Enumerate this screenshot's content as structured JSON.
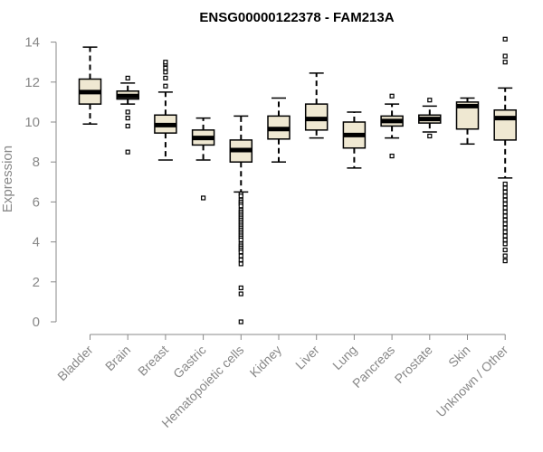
{
  "chart_data": {
    "type": "boxplot",
    "title": "ENSG00000122378 - FAM213A",
    "xlabel": "",
    "ylabel": "Expression",
    "ylim": [
      0,
      14.2
    ],
    "yticks": [
      0,
      2,
      4,
      6,
      8,
      10,
      12,
      14
    ],
    "box_fill": "#efe8d2",
    "line_color": "#000000",
    "categories": [
      "Bladder",
      "Brain",
      "Breast",
      "Gastric",
      "Hematopoietic cells",
      "Kidney",
      "Liver",
      "Lung",
      "Pancreas",
      "Prostate",
      "Skin",
      "Unknown / Other"
    ],
    "boxes": [
      {
        "name": "Bladder",
        "whisker_low": 9.9,
        "q1": 10.9,
        "median": 11.5,
        "q3": 12.15,
        "whisker_high": 13.75,
        "outliers": []
      },
      {
        "name": "Brain",
        "whisker_low": 10.9,
        "q1": 11.15,
        "median": 11.3,
        "q3": 11.55,
        "whisker_high": 11.95,
        "outliers": [
          12.2,
          10.5,
          10.2,
          9.8,
          8.5
        ]
      },
      {
        "name": "Breast",
        "whisker_low": 8.1,
        "q1": 9.45,
        "median": 9.85,
        "q3": 10.35,
        "whisker_high": 11.5,
        "outliers": [
          11.8,
          12.2,
          12.5,
          12.7,
          12.9,
          13.0
        ]
      },
      {
        "name": "Gastric",
        "whisker_low": 8.1,
        "q1": 8.85,
        "median": 9.2,
        "q3": 9.6,
        "whisker_high": 10.2,
        "outliers": [
          6.2
        ]
      },
      {
        "name": "Hematopoietic cells",
        "whisker_low": 6.5,
        "q1": 8.0,
        "median": 8.6,
        "q3": 9.1,
        "whisker_high": 10.3,
        "outliers": [
          6.4,
          6.3,
          6.1,
          6.0,
          5.9,
          5.8,
          5.6,
          5.5,
          5.4,
          5.3,
          5.2,
          5.1,
          5.0,
          4.9,
          4.8,
          4.7,
          4.6,
          4.5,
          4.4,
          4.3,
          4.2,
          4.1,
          3.9,
          3.8,
          3.7,
          3.6,
          3.5,
          3.3,
          3.1,
          2.9,
          1.7,
          1.4,
          0.0
        ]
      },
      {
        "name": "Kidney",
        "whisker_low": 8.0,
        "q1": 9.15,
        "median": 9.65,
        "q3": 10.3,
        "whisker_high": 11.2,
        "outliers": []
      },
      {
        "name": "Liver",
        "whisker_low": 9.2,
        "q1": 9.6,
        "median": 10.15,
        "q3": 10.9,
        "whisker_high": 12.45,
        "outliers": []
      },
      {
        "name": "Lung",
        "whisker_low": 7.7,
        "q1": 8.7,
        "median": 9.35,
        "q3": 10.0,
        "whisker_high": 10.5,
        "outliers": []
      },
      {
        "name": "Pancreas",
        "whisker_low": 9.2,
        "q1": 9.8,
        "median": 10.05,
        "q3": 10.3,
        "whisker_high": 10.9,
        "outliers": [
          11.3,
          8.3
        ]
      },
      {
        "name": "Prostate",
        "whisker_low": 9.5,
        "q1": 9.95,
        "median": 10.15,
        "q3": 10.35,
        "whisker_high": 10.8,
        "outliers": [
          11.1,
          9.3
        ]
      },
      {
        "name": "Skin",
        "whisker_low": 8.9,
        "q1": 9.65,
        "median": 10.8,
        "q3": 11.0,
        "whisker_high": 11.2,
        "outliers": []
      },
      {
        "name": "Unknown / Other",
        "whisker_low": 7.2,
        "q1": 9.1,
        "median": 10.2,
        "q3": 10.6,
        "whisker_high": 11.7,
        "outliers": [
          14.15,
          13.3,
          13.0,
          6.9,
          6.7,
          6.5,
          6.3,
          6.1,
          5.9,
          5.7,
          5.5,
          5.3,
          5.1,
          4.9,
          4.7,
          4.5,
          4.3,
          4.1,
          3.9,
          3.6,
          3.3,
          3.05
        ]
      }
    ]
  }
}
